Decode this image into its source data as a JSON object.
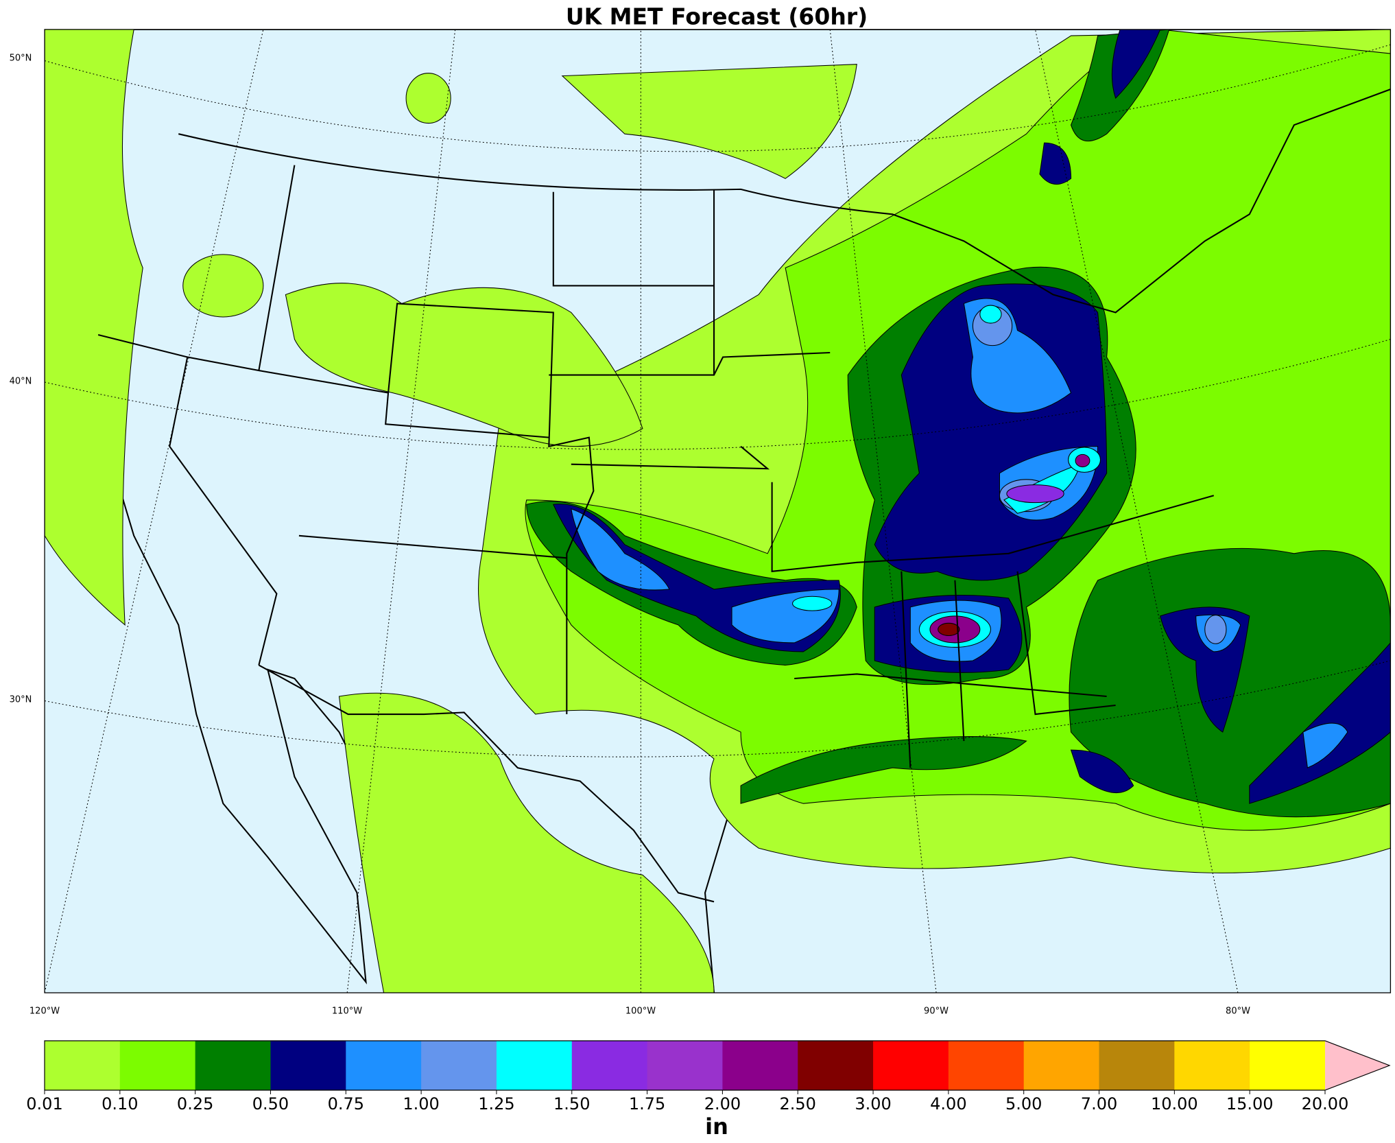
{
  "title": "UK MET Forecast (60hr)",
  "map": {
    "lat_labels": [
      "50°N",
      "40°N",
      "30°N"
    ],
    "lon_labels": [
      "120°W",
      "110°W",
      "100°W",
      "90°W",
      "80°W"
    ],
    "ocean_color": "#ddf4fd",
    "land_color": "#ffffff"
  },
  "colorbar": {
    "labels": [
      "0.01",
      "0.10",
      "0.25",
      "0.50",
      "0.75",
      "1.00",
      "1.25",
      "1.50",
      "1.75",
      "2.00",
      "2.50",
      "3.00",
      "4.00",
      "5.00",
      "7.00",
      "10.00",
      "15.00",
      "20.00"
    ],
    "colors": [
      "#adff2f",
      "#7cfc00",
      "#007f00",
      "#000080",
      "#1e90ff",
      "#6495ed",
      "#00ffff",
      "#8a2be2",
      "#9932cc",
      "#8b008b",
      "#800000",
      "#ff0000",
      "#ff4500",
      "#ffa500",
      "#b8860b",
      "#ffd700",
      "#ffff00"
    ],
    "extend_color": "#ffc0cb",
    "unit": "in"
  }
}
